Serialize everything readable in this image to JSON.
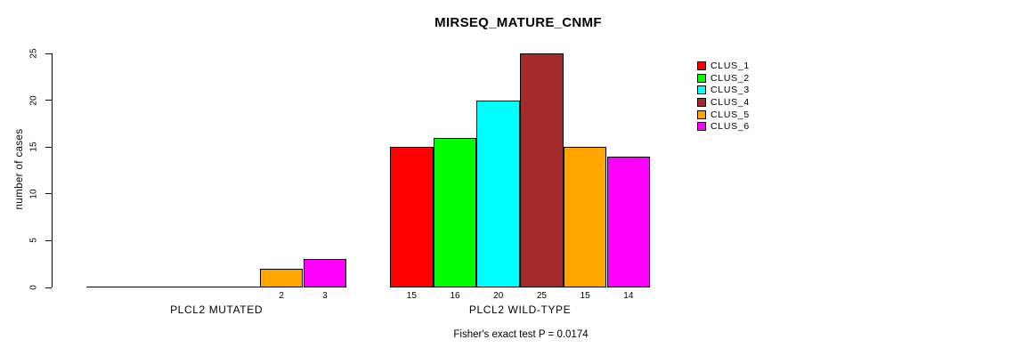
{
  "chart_data": {
    "type": "bar",
    "title": "MIRSEQ_MATURE_CNMF",
    "ylabel": "number of cases",
    "xlabel": "",
    "ylim": [
      0,
      25
    ],
    "yticks": [
      0,
      5,
      10,
      15,
      20,
      25
    ],
    "grid": false,
    "legend_position": "right",
    "categories": [
      "PLCL2 MUTATED",
      "PLCL2 WILD-TYPE"
    ],
    "series": [
      {
        "name": "CLUS_1",
        "color": "#FF0000",
        "values": [
          0,
          15
        ]
      },
      {
        "name": "CLUS_2",
        "color": "#00FF00",
        "values": [
          0,
          16
        ]
      },
      {
        "name": "CLUS_3",
        "color": "#00FFFF",
        "values": [
          0,
          20
        ]
      },
      {
        "name": "CLUS_4",
        "color": "#A52A2A",
        "values": [
          0,
          25
        ]
      },
      {
        "name": "CLUS_5",
        "color": "#FFA500",
        "values": [
          2,
          15
        ]
      },
      {
        "name": "CLUS_6",
        "color": "#FF00FF",
        "values": [
          3,
          14
        ]
      }
    ],
    "bar_labels_shown_for_positive_values": true,
    "caption": "Fisher's exact test P = 0.0174",
    "colors": {
      "background": "#FFFFFF",
      "axis": "#000000",
      "text": "#000000"
    }
  }
}
